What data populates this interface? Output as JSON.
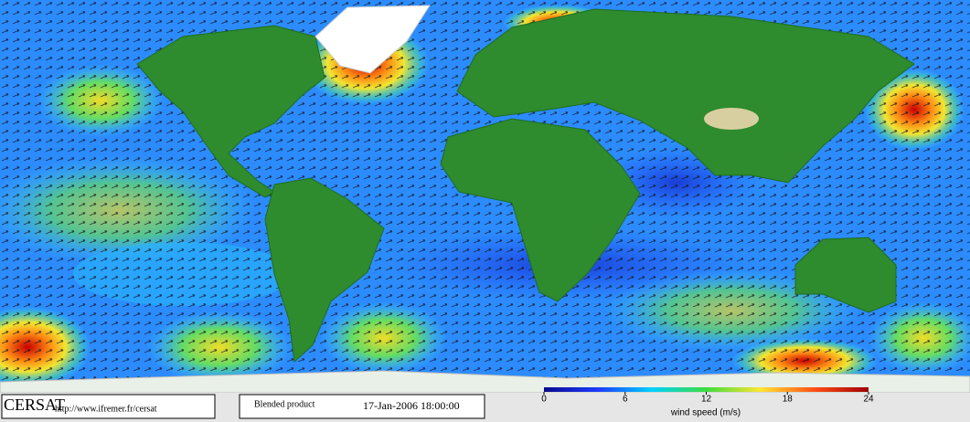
{
  "footer": {
    "logo": "CERSAT",
    "url": "http://www.ifremer.fr/cersat",
    "product": "Blended product",
    "date": "17-Jan-2006 18:00:00"
  },
  "colorbar": {
    "label": "wind speed (m/s)",
    "lim": [
      0,
      24
    ],
    "ticks": [
      0,
      6,
      12,
      18,
      24
    ],
    "colors": [
      "#0a0a8c",
      "#1e3cff",
      "#00d2ff",
      "#3cdc3c",
      "#ffe632",
      "#ff5014",
      "#a00000"
    ]
  }
}
